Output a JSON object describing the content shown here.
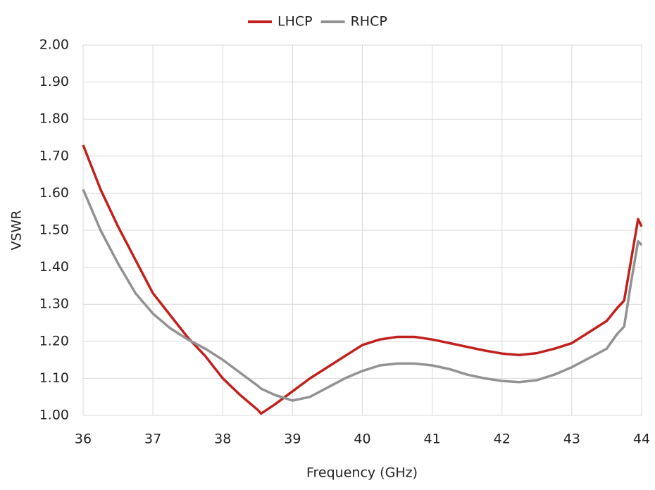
{
  "chart_data": {
    "type": "line",
    "x_label": "Frequency (GHz)",
    "y_label": "VSWR",
    "x": [
      36,
      36.25,
      36.5,
      36.75,
      37,
      37.25,
      37.5,
      37.75,
      38,
      38.25,
      38.5,
      38.55,
      38.75,
      39,
      39.25,
      39.5,
      39.75,
      40,
      40.25,
      40.5,
      40.75,
      41,
      41.25,
      41.5,
      41.75,
      42,
      42.25,
      42.5,
      42.75,
      43,
      43.25,
      43.5,
      43.65,
      43.75,
      43.85,
      43.95,
      44
    ],
    "series": [
      {
        "name": "LHCP",
        "color": "#c0211d",
        "values": [
          1.73,
          1.61,
          1.51,
          1.42,
          1.33,
          1.27,
          1.21,
          1.16,
          1.1,
          1.055,
          1.015,
          1.005,
          1.03,
          1.065,
          1.1,
          1.13,
          1.16,
          1.19,
          1.205,
          1.212,
          1.212,
          1.205,
          1.195,
          1.185,
          1.175,
          1.167,
          1.163,
          1.168,
          1.18,
          1.195,
          1.225,
          1.255,
          1.29,
          1.31,
          1.42,
          1.53,
          1.51
        ]
      },
      {
        "name": "RHCP",
        "color": "#929292",
        "values": [
          1.61,
          1.5,
          1.41,
          1.33,
          1.275,
          1.235,
          1.205,
          1.18,
          1.15,
          1.115,
          1.08,
          1.072,
          1.055,
          1.04,
          1.05,
          1.075,
          1.1,
          1.12,
          1.135,
          1.14,
          1.14,
          1.135,
          1.125,
          1.11,
          1.1,
          1.093,
          1.09,
          1.095,
          1.11,
          1.13,
          1.155,
          1.18,
          1.22,
          1.24,
          1.36,
          1.47,
          1.46
        ]
      }
    ],
    "xlim": [
      36,
      44
    ],
    "xticks": [
      36,
      37,
      38,
      39,
      40,
      41,
      42,
      43,
      44
    ],
    "ylim": [
      1,
      2
    ],
    "yticks": [
      {
        "value": 1,
        "label": "1.00"
      },
      {
        "value": 1.1,
        "label": "1.10"
      },
      {
        "value": 1.2,
        "label": "1.20"
      },
      {
        "value": 1.3,
        "label": "1.30"
      },
      {
        "value": 1.4,
        "label": "1.40"
      },
      {
        "value": 1.5,
        "label": "1.50"
      },
      {
        "value": 1.6,
        "label": "1.60"
      },
      {
        "value": 1.7,
        "label": "1.70"
      },
      {
        "value": 1.8,
        "label": "1.80"
      },
      {
        "value": 1.9,
        "label": "1.90"
      },
      {
        "value": 2,
        "label": "2.00"
      }
    ],
    "grid": true,
    "legend": "top"
  }
}
